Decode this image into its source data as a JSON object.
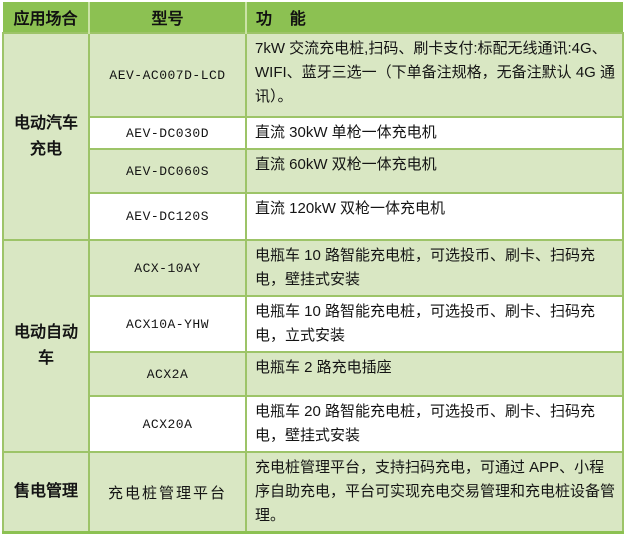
{
  "table": {
    "headers": {
      "application": "应用场合",
      "model": "型号",
      "function": "功    能"
    },
    "groups": [
      {
        "application": "电动汽车\n充电",
        "rows": [
          {
            "model": "AEV-AC007D-LCD",
            "function": "7kW 交流充电桩,扫码、刷卡支付:标配无线通讯:4G、WIFI、蓝牙三选一（下单备注规格，无备注默认 4G 通讯）。"
          },
          {
            "model": "AEV-DC030D",
            "function": "直流 30kW 单枪一体充电机"
          },
          {
            "model": "AEV-DC060S",
            "function": "直流 60kW 双枪一体充电机"
          },
          {
            "model": "AEV-DC120S",
            "function": "直流 120kW 双枪一体充电机"
          }
        ]
      },
      {
        "application": "电动自动\n车",
        "rows": [
          {
            "model": "ACX-10AY",
            "function": "电瓶车 10 路智能充电桩，可选投币、刷卡、扫码充电，壁挂式安装"
          },
          {
            "model": "ACX10A-YHW",
            "function": "电瓶车 10 路智能充电桩，可选投币、刷卡、扫码充电，立式安装"
          },
          {
            "model": "ACX2A",
            "function": "电瓶车 2 路充电插座"
          },
          {
            "model": "ACX20A",
            "function": "电瓶车 20 路智能充电桩，可选投币、刷卡、扫码充电，壁挂式安装"
          }
        ]
      },
      {
        "application": "售电管理",
        "rows": [
          {
            "model": "充电桩管理平台",
            "function": "充电桩管理平台，支持扫码充电，可通过 APP、小程序自助充电，平台可实现充电交易管理和充电桩设备管理。",
            "model_cjk": true
          }
        ]
      }
    ],
    "colors": {
      "header_bg": "#8CC152",
      "band_light": "#D9E7C3",
      "band_white": "#FFFFFF",
      "border": "#9DC468",
      "text": "#141414"
    }
  }
}
